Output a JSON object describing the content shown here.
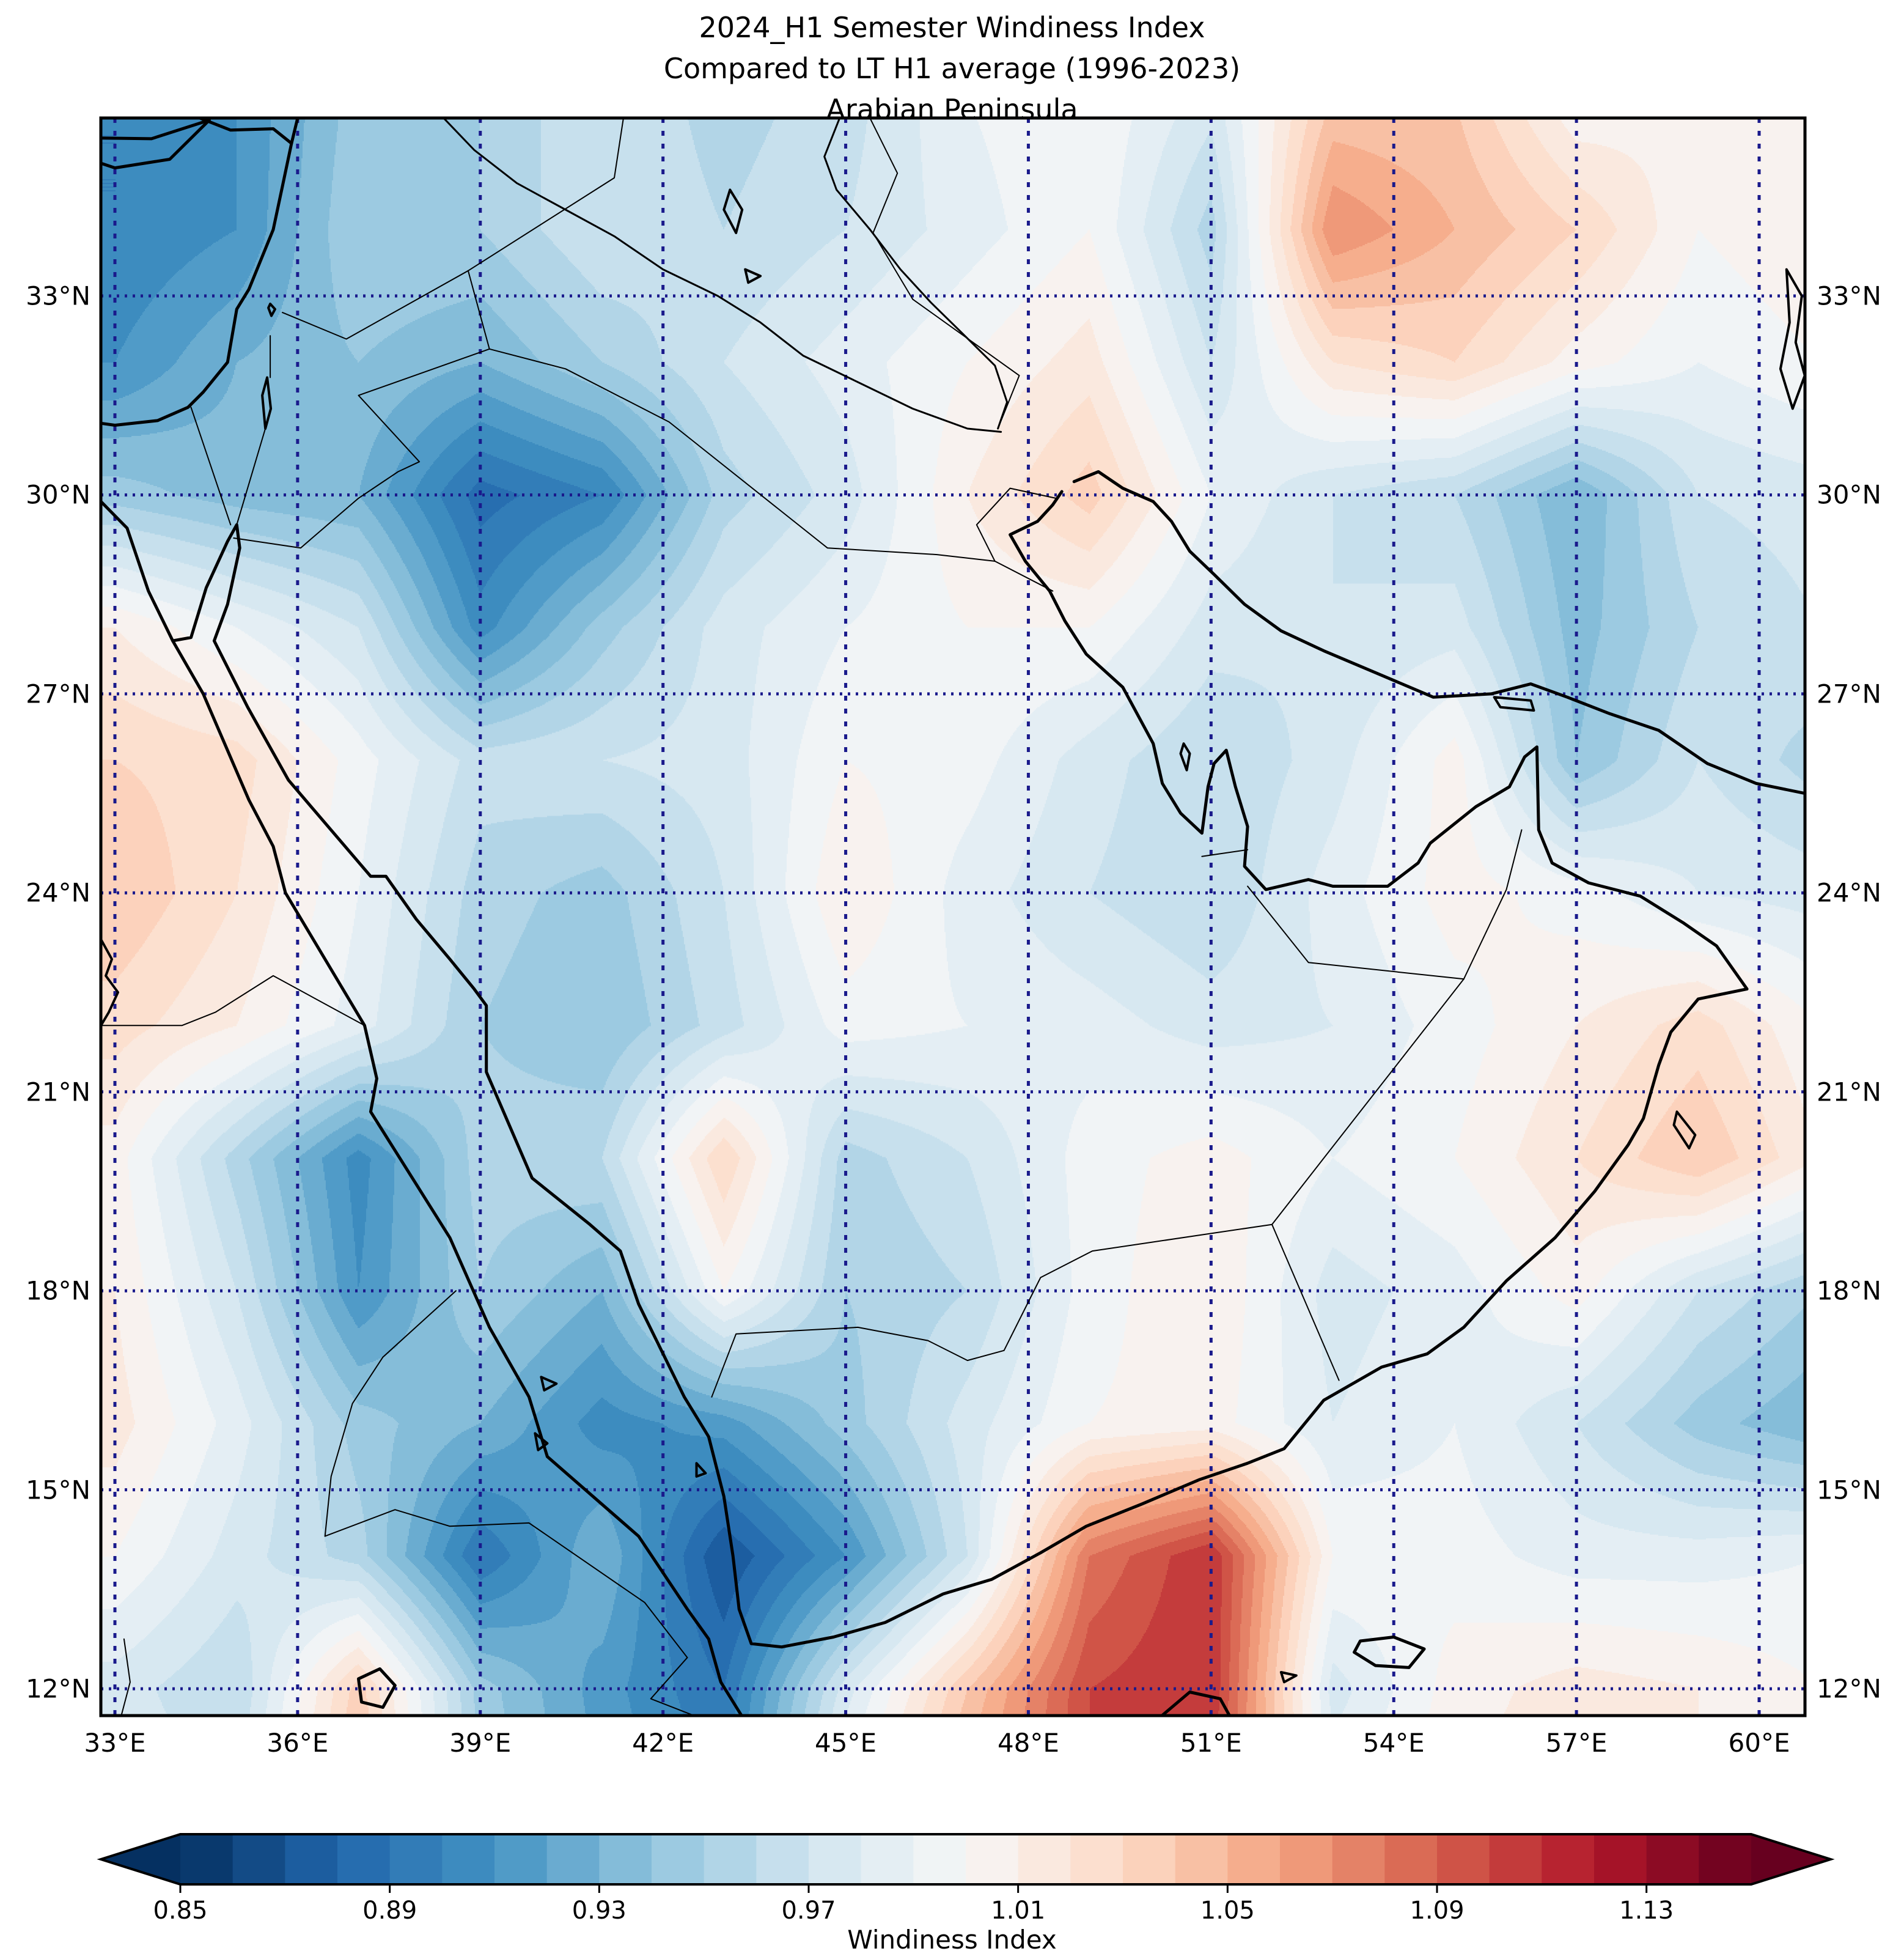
{
  "title": {
    "line1": "2024_H1 Semester Windiness Index",
    "line2": "Compared to LT H1 average (1996-2023)",
    "line3": "Arabian Peninsula"
  },
  "axes": {
    "x_tick_labels": [
      "33°E",
      "36°E",
      "39°E",
      "42°E",
      "45°E",
      "48°E",
      "51°E",
      "54°E",
      "57°E",
      "60°E"
    ],
    "x_tick_values": [
      33,
      36,
      39,
      42,
      45,
      48,
      51,
      54,
      57,
      60
    ],
    "y_tick_labels": [
      "33°N",
      "30°N",
      "27°N",
      "24°N",
      "21°N",
      "18°N",
      "15°N",
      "12°N"
    ],
    "y_tick_values": [
      33,
      30,
      27,
      24,
      21,
      18,
      15,
      12
    ],
    "graticule_interval_deg": 3,
    "graticule_color": "#1a1a8c"
  },
  "colorbar": {
    "label": "Windiness Index",
    "tick_labels": [
      "0.85",
      "0.89",
      "0.93",
      "0.97",
      "1.01",
      "1.05",
      "1.09",
      "1.13"
    ],
    "tick_values": [
      0.85,
      0.89,
      0.93,
      0.97,
      1.01,
      1.05,
      1.09,
      1.13
    ],
    "vmin": 0.85,
    "vmax": 1.15,
    "band_step": 0.01,
    "extend": "both",
    "colormap_name": "RdBu_r",
    "colormap_anchors": [
      "#053061",
      "#2166ac",
      "#4393c3",
      "#92c5de",
      "#d1e5f0",
      "#f7f7f7",
      "#fddbc7",
      "#f4a582",
      "#d6604d",
      "#b2182b",
      "#67001f"
    ]
  },
  "chart_data": {
    "type": "heatmap",
    "title": "2024_H1 Semester Windiness Index Compared to LT H1 average (1996-2023) — Arabian Peninsula",
    "zlabel": "Windiness Index",
    "extent": {
      "lon_min": 32.77,
      "lon_max": 60.75,
      "lat_min": 11.59,
      "lat_max": 35.68
    },
    "x_lon": [
      33,
      35,
      37,
      39,
      41,
      43,
      45,
      47,
      49,
      51,
      53,
      55,
      57,
      59,
      61
    ],
    "y_lat": [
      36,
      34,
      32,
      30,
      28,
      26,
      24,
      22,
      20,
      18,
      16,
      14,
      12,
      10
    ],
    "values": [
      [
        0.9,
        0.91,
        0.945,
        0.95,
        0.97,
        0.955,
        0.965,
        0.99,
        1.0,
        0.975,
        1.04,
        1.04,
        1.0,
        1.01,
        1.0
      ],
      [
        0.9,
        0.91,
        0.95,
        0.95,
        0.97,
        0.96,
        0.97,
        0.985,
        1.0,
        0.955,
        1.07,
        1.05,
        1.03,
        1.0,
        1.01
      ],
      [
        0.91,
        0.93,
        0.94,
        0.93,
        0.95,
        0.97,
        0.985,
        1.0,
        1.015,
        0.97,
        1.02,
        1.03,
        1.005,
        0.99,
        1.0
      ],
      [
        0.945,
        0.935,
        0.93,
        0.885,
        0.9,
        0.955,
        0.975,
        1.01,
        1.035,
        0.99,
        0.97,
        0.96,
        0.93,
        0.97,
        0.975
      ],
      [
        1.01,
        0.99,
        0.97,
        0.905,
        0.945,
        0.975,
        0.99,
        1.0,
        1.0,
        0.975,
        0.97,
        0.975,
        0.935,
        0.96,
        0.97
      ],
      [
        1.03,
        1.025,
        0.995,
        0.965,
        0.97,
        0.975,
        1.0,
        0.995,
        0.975,
        0.96,
        0.975,
        1.005,
        0.94,
        0.97,
        0.955
      ],
      [
        1.04,
        1.02,
        0.99,
        0.955,
        0.945,
        0.97,
        1.01,
        0.985,
        0.97,
        0.96,
        0.985,
        1.005,
        0.995,
        0.98,
        0.975
      ],
      [
        1.025,
        1.01,
        0.985,
        0.95,
        0.94,
        0.965,
        0.995,
        0.99,
        0.985,
        0.975,
        0.98,
        0.995,
        1.01,
        1.025,
        1.0
      ],
      [
        1.005,
        0.955,
        0.905,
        0.955,
        0.96,
        1.03,
        0.955,
        0.97,
        0.995,
        1.005,
        0.99,
        1.0,
        1.02,
        1.04,
        1.01
      ],
      [
        1.01,
        0.97,
        0.91,
        0.95,
        0.93,
        1.0,
        0.95,
        0.96,
        0.995,
        1.01,
        0.975,
        0.985,
        1.005,
        0.97,
        0.95
      ],
      [
        1.015,
        0.985,
        0.945,
        0.93,
        0.905,
        0.915,
        0.945,
        0.975,
        1.0,
        1.005,
        0.98,
        0.99,
        0.97,
        0.945,
        0.93
      ],
      [
        1.0,
        0.975,
        0.955,
        0.89,
        0.93,
        0.87,
        0.91,
        0.97,
        1.08,
        1.11,
        1.0,
        0.995,
        0.985,
        0.985,
        0.99
      ],
      [
        0.975,
        0.96,
        1.035,
        0.945,
        0.915,
        0.89,
        0.975,
        1.04,
        1.1,
        1.11,
        0.975,
        1.005,
        1.015,
        1.01,
        1.0
      ],
      [
        0.98,
        0.97,
        1.05,
        0.95,
        0.92,
        0.9,
        1.0,
        1.06,
        1.1,
        1.1,
        0.99,
        1.01,
        1.02,
        1.01,
        0.99
      ]
    ]
  }
}
